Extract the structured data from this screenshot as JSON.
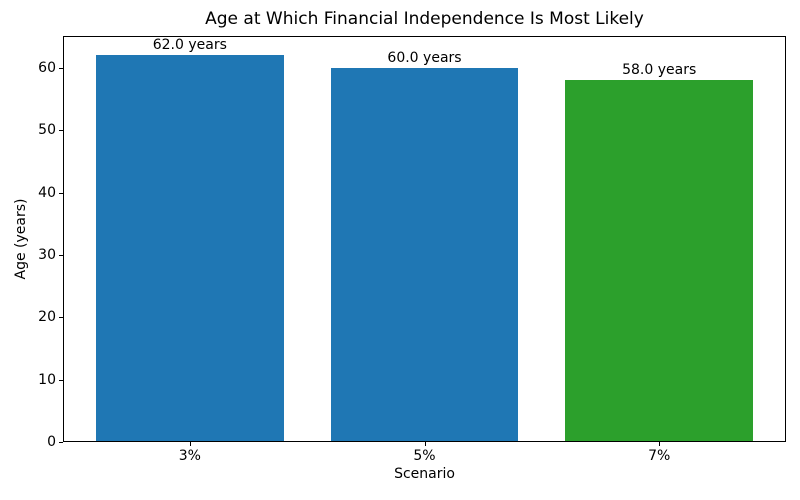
{
  "chart_data": {
    "type": "bar",
    "title": "Age at Which Financial Independence Is Most Likely",
    "xlabel": "Scenario",
    "ylabel": "Age (years)",
    "categories": [
      "3%",
      "5%",
      "7%"
    ],
    "values": [
      62.0,
      60.0,
      58.0
    ],
    "bar_labels": [
      "62.0 years",
      "60.0 years",
      "58.0 years"
    ],
    "bar_colors": [
      "#1f77b4",
      "#1f77b4",
      "#2ca02c"
    ],
    "ylim": [
      0,
      65.1
    ],
    "xlim": [
      -0.54,
      2.54
    ],
    "yticks": [
      0,
      10,
      20,
      30,
      40,
      50,
      60
    ],
    "bar_width": 0.8,
    "grid": false,
    "legend_position": "none",
    "spine_color": "#000000",
    "text_color": "#000000",
    "background_color": "#ffffff"
  }
}
